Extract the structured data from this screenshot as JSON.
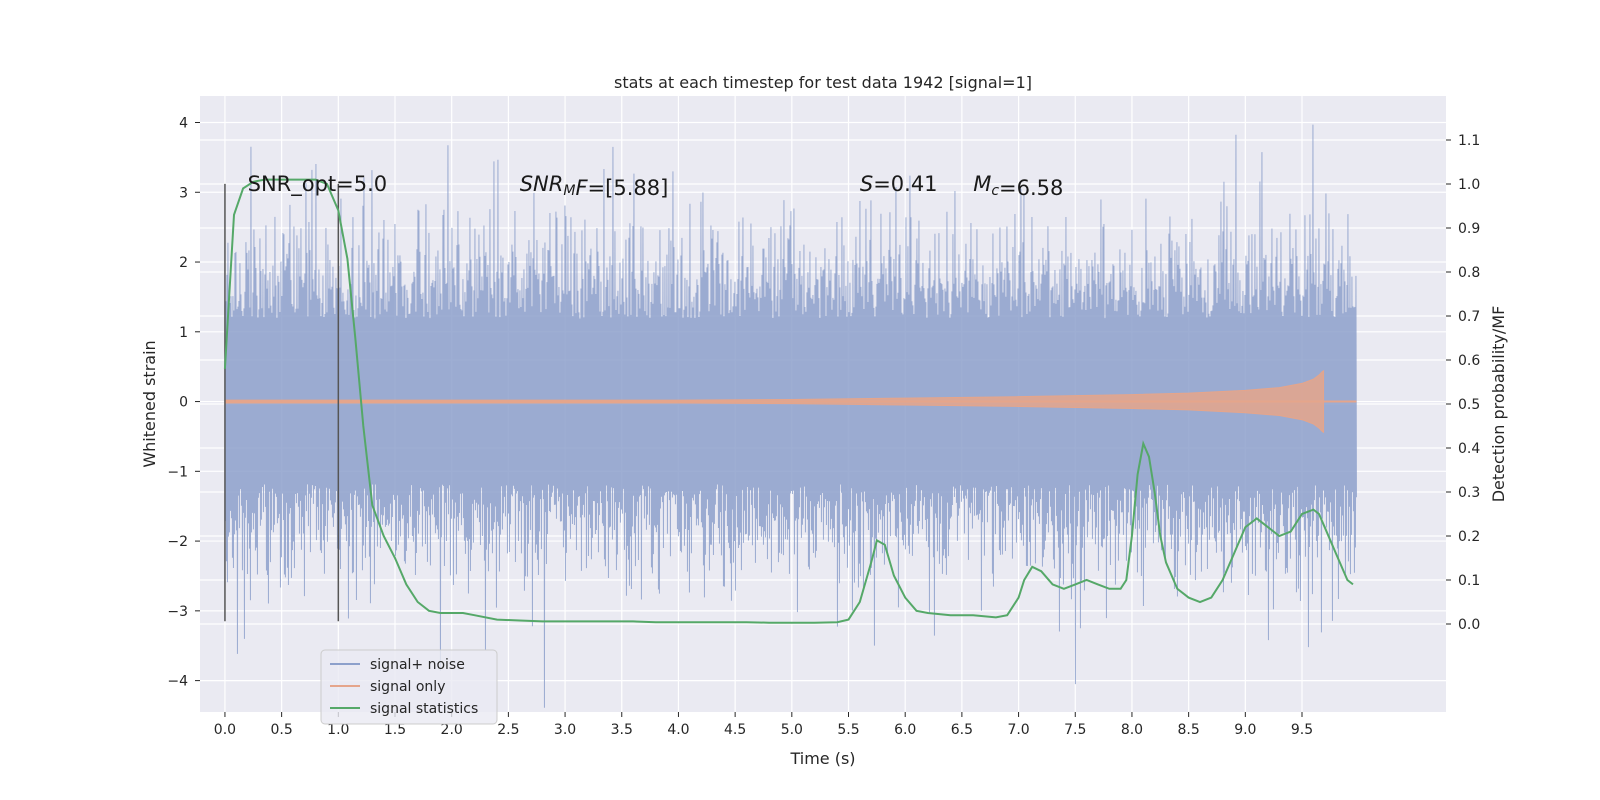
{
  "chart_data": {
    "type": "line",
    "title": "stats at each timestep for test data 1942 [signal=1]",
    "xlabel": "Time (s)",
    "ylabel_left": "Whitened strain",
    "ylabel_right": "Detection probability/MF",
    "xlim": [
      -0.22,
      10.77
    ],
    "ylim_left": [
      -4.45,
      4.38
    ],
    "ylim_right": [
      -0.2,
      1.2
    ],
    "x_ticks": [
      0.0,
      0.5,
      1.0,
      1.5,
      2.0,
      2.5,
      3.0,
      3.5,
      4.0,
      4.5,
      5.0,
      5.5,
      6.0,
      6.5,
      7.0,
      7.5,
      8.0,
      8.5,
      9.0,
      9.5
    ],
    "x_tick_labels": [
      "0.0",
      "0.5",
      "1.0",
      "1.5",
      "2.0",
      "2.5",
      "3.0",
      "3.5",
      "4.0",
      "4.5",
      "5.0",
      "5.5",
      "6.0",
      "6.5",
      "7.0",
      "7.5",
      "8.0",
      "8.5",
      "9.0",
      "9.5"
    ],
    "y_left_ticks": [
      -4,
      -3,
      -2,
      -1,
      0,
      1,
      2,
      3,
      4
    ],
    "y_left_tick_labels": [
      "−4",
      "−3",
      "−2",
      "−1",
      "0",
      "1",
      "2",
      "3",
      "4"
    ],
    "y_right_ticks": [
      0.0,
      0.1,
      0.2,
      0.3,
      0.4,
      0.5,
      0.6,
      0.7,
      0.8,
      0.9,
      1.0,
      1.1
    ],
    "y_right_tick_labels": [
      "0.0",
      "0.1",
      "0.2",
      "0.3",
      "0.4",
      "0.5",
      "0.6",
      "0.7",
      "0.8",
      "0.9",
      "1.0",
      "1.1"
    ],
    "grid": true,
    "legend_position": "lower-left",
    "series": [
      {
        "name": "signal+ noise",
        "color": "#8da0cb",
        "axis": "left",
        "kind": "noise-band",
        "x_range": [
          0.0,
          9.98
        ],
        "core_amplitude": 1.25,
        "peak_amplitude_range": [
          -4.05,
          3.97
        ],
        "notable_peaks": [
          {
            "x": 3.42,
            "y": 3.65
          },
          {
            "x": 9.6,
            "y": 3.97
          },
          {
            "x": 7.5,
            "y": -4.05
          },
          {
            "x": 9.55,
            "y": -3.52
          },
          {
            "x": 9.2,
            "y": -3.42
          }
        ]
      },
      {
        "name": "signal only",
        "color": "#e5a58b",
        "axis": "left",
        "kind": "chirp-envelope",
        "envelope_x": [
          0.0,
          2.0,
          4.0,
          5.0,
          6.0,
          7.0,
          8.0,
          8.5,
          9.0,
          9.3,
          9.5,
          9.6,
          9.65,
          9.68,
          9.69
        ],
        "envelope_amplitude": [
          0.02,
          0.02,
          0.02,
          0.03,
          0.05,
          0.07,
          0.1,
          0.12,
          0.16,
          0.2,
          0.26,
          0.32,
          0.38,
          0.43,
          0.44
        ]
      },
      {
        "name": "signal statistics",
        "color": "#55a868",
        "axis": "right",
        "x": [
          0.0,
          0.08,
          0.16,
          0.25,
          0.35,
          0.5,
          0.65,
          0.8,
          0.9,
          1.0,
          1.08,
          1.15,
          1.22,
          1.3,
          1.4,
          1.5,
          1.6,
          1.7,
          1.8,
          1.9,
          2.0,
          2.1,
          2.2,
          2.4,
          2.6,
          2.8,
          3.0,
          3.2,
          3.4,
          3.6,
          3.8,
          4.0,
          4.2,
          4.4,
          4.6,
          4.8,
          5.0,
          5.2,
          5.4,
          5.5,
          5.6,
          5.7,
          5.75,
          5.82,
          5.9,
          6.0,
          6.1,
          6.2,
          6.4,
          6.6,
          6.8,
          6.9,
          7.0,
          7.05,
          7.12,
          7.2,
          7.3,
          7.4,
          7.5,
          7.6,
          7.7,
          7.8,
          7.9,
          7.95,
          8.0,
          8.05,
          8.1,
          8.15,
          8.2,
          8.25,
          8.3,
          8.4,
          8.5,
          8.6,
          8.7,
          8.8,
          8.9,
          9.0,
          9.1,
          9.2,
          9.3,
          9.4,
          9.5,
          9.6,
          9.65,
          9.7,
          9.8,
          9.9,
          9.95
        ],
        "values": [
          0.58,
          0.93,
          0.99,
          1.005,
          1.01,
          1.01,
          1.01,
          1.01,
          1.0,
          0.94,
          0.83,
          0.65,
          0.45,
          0.27,
          0.2,
          0.15,
          0.09,
          0.05,
          0.03,
          0.025,
          0.025,
          0.025,
          0.02,
          0.01,
          0.008,
          0.006,
          0.006,
          0.006,
          0.006,
          0.006,
          0.004,
          0.004,
          0.004,
          0.004,
          0.004,
          0.003,
          0.003,
          0.003,
          0.004,
          0.01,
          0.05,
          0.14,
          0.19,
          0.18,
          0.11,
          0.06,
          0.03,
          0.025,
          0.02,
          0.02,
          0.015,
          0.02,
          0.06,
          0.1,
          0.13,
          0.12,
          0.09,
          0.08,
          0.09,
          0.1,
          0.09,
          0.08,
          0.08,
          0.1,
          0.2,
          0.34,
          0.41,
          0.38,
          0.3,
          0.2,
          0.14,
          0.08,
          0.06,
          0.05,
          0.06,
          0.1,
          0.16,
          0.22,
          0.24,
          0.22,
          0.2,
          0.21,
          0.25,
          0.26,
          0.25,
          0.22,
          0.16,
          0.1,
          0.09
        ]
      }
    ],
    "vertical_lines": [
      {
        "x": 0.0,
        "y_from": -3.15,
        "y_to": 3.12
      },
      {
        "x": 1.0,
        "y_from": -3.15,
        "y_to": 3.12
      }
    ],
    "annotations": [
      {
        "id": "snr-opt",
        "text": "SNR_opt=5.0",
        "x": 0.2,
        "y": 3.12
      },
      {
        "id": "snr-mf",
        "text_italic": "SNR",
        "text_sub": "M",
        "text_italic2": "F",
        "text_rest": "=[5.88]",
        "x": 2.6,
        "y": 3.12
      },
      {
        "id": "s-stat",
        "text_italic": "S",
        "text_rest": "=0.41",
        "x": 5.6,
        "y": 3.12
      },
      {
        "id": "mc",
        "text_italic": "M",
        "text_sub": "c",
        "text_rest": "=6.58",
        "x": 6.6,
        "y": 3.12
      }
    ]
  }
}
